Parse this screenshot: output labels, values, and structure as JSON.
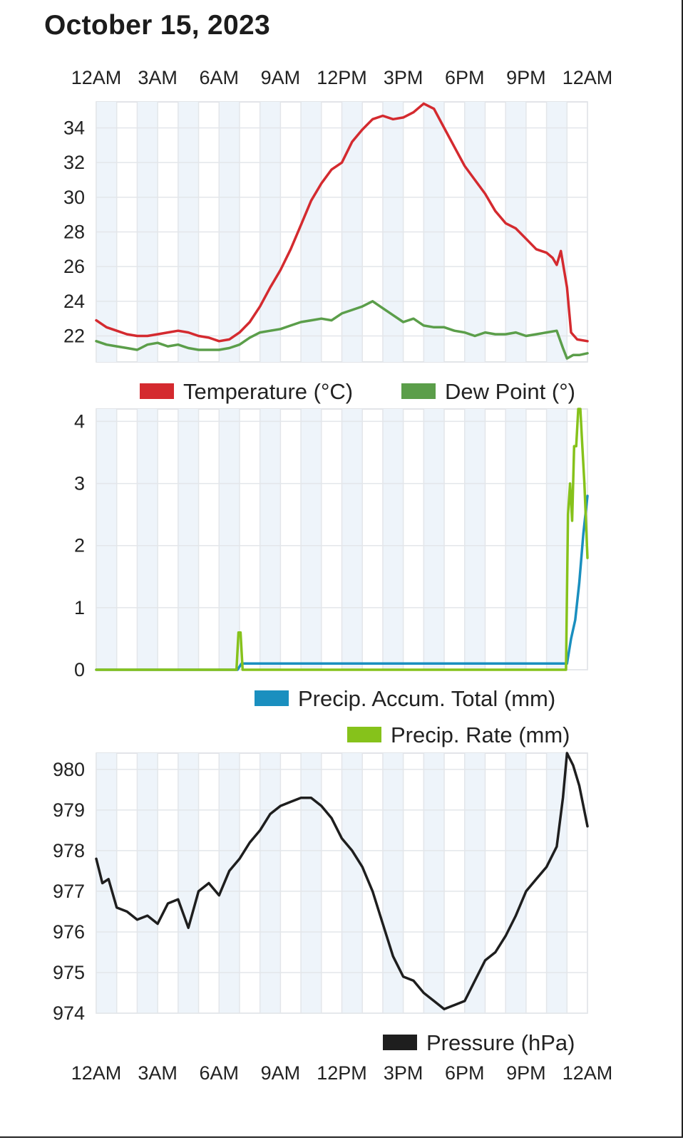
{
  "page": {
    "title": "October 15, 2023"
  },
  "chart_data": [
    {
      "type": "line",
      "id": "temperature-dewpoint",
      "title": "",
      "x_unit": "hours",
      "xlim": [
        0,
        24
      ],
      "ylim": [
        20.5,
        35.5
      ],
      "yticks": [
        22,
        24,
        26,
        28,
        30,
        32,
        34
      ],
      "xticks": [
        {
          "x": 0,
          "label": "12AM"
        },
        {
          "x": 3,
          "label": "3AM"
        },
        {
          "x": 6,
          "label": "6AM"
        },
        {
          "x": 9,
          "label": "9AM"
        },
        {
          "x": 12,
          "label": "12PM"
        },
        {
          "x": 15,
          "label": "3PM"
        },
        {
          "x": 18,
          "label": "6PM"
        },
        {
          "x": 21,
          "label": "9PM"
        },
        {
          "x": 24,
          "label": "12AM"
        }
      ],
      "grid": true,
      "legend": "bottom-right",
      "series": [
        {
          "name": "Temperature (°C)",
          "color": "#d42a2f",
          "x": [
            0,
            0.5,
            1,
            1.5,
            2,
            2.5,
            3,
            3.5,
            4,
            4.5,
            5,
            5.5,
            6,
            6.5,
            7,
            7.5,
            8,
            8.5,
            9,
            9.5,
            10,
            10.5,
            11,
            11.5,
            12,
            12.5,
            13,
            13.5,
            14,
            14.5,
            15,
            15.5,
            16,
            16.5,
            17,
            17.5,
            18,
            18.5,
            19,
            19.5,
            20,
            20.5,
            21,
            21.5,
            22,
            22.3,
            22.5,
            22.7,
            23,
            23.2,
            23.5,
            24
          ],
          "y": [
            22.9,
            22.5,
            22.3,
            22.1,
            22.0,
            22.0,
            22.1,
            22.2,
            22.3,
            22.2,
            22.0,
            21.9,
            21.7,
            21.8,
            22.2,
            22.8,
            23.7,
            24.8,
            25.8,
            27.0,
            28.4,
            29.8,
            30.8,
            31.6,
            32.0,
            33.2,
            33.9,
            34.5,
            34.7,
            34.5,
            34.6,
            34.9,
            35.4,
            35.1,
            34.0,
            32.9,
            31.8,
            31.0,
            30.2,
            29.2,
            28.5,
            28.2,
            27.6,
            27.0,
            26.8,
            26.5,
            26.1,
            26.9,
            24.8,
            22.2,
            21.8,
            21.7
          ]
        },
        {
          "name": "Dew Point (°)",
          "color": "#5b9e4a",
          "x": [
            0,
            0.5,
            1,
            1.5,
            2,
            2.5,
            3,
            3.5,
            4,
            4.5,
            5,
            5.5,
            6,
            6.5,
            7,
            7.5,
            8,
            8.5,
            9,
            9.5,
            10,
            10.5,
            11,
            11.5,
            12,
            12.5,
            13,
            13.5,
            14,
            14.5,
            15,
            15.5,
            16,
            16.5,
            17,
            17.5,
            18,
            18.5,
            19,
            19.5,
            20,
            20.5,
            21,
            21.5,
            22,
            22.5,
            22.8,
            23,
            23.3,
            23.6,
            24
          ],
          "y": [
            21.7,
            21.5,
            21.4,
            21.3,
            21.2,
            21.5,
            21.6,
            21.4,
            21.5,
            21.3,
            21.2,
            21.2,
            21.2,
            21.3,
            21.5,
            21.9,
            22.2,
            22.3,
            22.4,
            22.6,
            22.8,
            22.9,
            23.0,
            22.9,
            23.3,
            23.5,
            23.7,
            24.0,
            23.6,
            23.2,
            22.8,
            23.0,
            22.6,
            22.5,
            22.5,
            22.3,
            22.2,
            22.0,
            22.2,
            22.1,
            22.1,
            22.2,
            22.0,
            22.1,
            22.2,
            22.3,
            21.3,
            20.7,
            20.9,
            20.9,
            21.0
          ]
        }
      ]
    },
    {
      "type": "line",
      "id": "precipitation",
      "title": "",
      "x_unit": "hours",
      "xlim": [
        0,
        24
      ],
      "ylim": [
        0,
        4.2
      ],
      "yticks": [
        0,
        1,
        2,
        3,
        4
      ],
      "grid": true,
      "legend": "bottom-right",
      "series": [
        {
          "name": "Precip. Accum. Total (mm)",
          "color": "#1a8fbf",
          "x": [
            0,
            6.9,
            7.0,
            7.1,
            23.0,
            23.2,
            23.4,
            23.6,
            23.8,
            24
          ],
          "y": [
            0,
            0,
            0.05,
            0.1,
            0.1,
            0.5,
            0.8,
            1.4,
            2.2,
            2.8
          ]
        },
        {
          "name": "Precip. Rate (mm)",
          "color": "#86c21b",
          "x": [
            0,
            6.85,
            6.95,
            7.05,
            7.15,
            7.25,
            22.95,
            23.05,
            23.15,
            23.25,
            23.35,
            23.45,
            23.55,
            23.65,
            23.75,
            23.85,
            24
          ],
          "y": [
            0,
            0,
            0.6,
            0.6,
            0,
            0,
            0,
            2.5,
            3.0,
            2.4,
            3.6,
            3.6,
            4.2,
            4.2,
            3.6,
            3.0,
            1.8
          ]
        }
      ]
    },
    {
      "type": "line",
      "id": "pressure",
      "title": "",
      "x_unit": "hours",
      "xlim": [
        0,
        24
      ],
      "ylim": [
        974,
        980.4
      ],
      "yticks": [
        974,
        975,
        976,
        977,
        978,
        979,
        980
      ],
      "grid": true,
      "legend": "bottom-right",
      "series": [
        {
          "name": "Pressure (hPa)",
          "color": "#1e1e1e",
          "x": [
            0,
            0.3,
            0.6,
            1,
            1.5,
            2,
            2.5,
            3,
            3.5,
            4,
            4.5,
            5,
            5.5,
            6,
            6.5,
            7,
            7.5,
            8,
            8.5,
            9,
            9.5,
            10,
            10.5,
            11,
            11.5,
            12,
            12.5,
            13,
            13.5,
            14,
            14.5,
            15,
            15.5,
            16,
            16.5,
            17,
            17.5,
            18,
            18.5,
            19,
            19.5,
            20,
            20.5,
            21,
            21.5,
            22,
            22.5,
            22.8,
            23,
            23.3,
            23.6,
            24
          ],
          "y": [
            977.8,
            977.2,
            977.3,
            976.6,
            976.5,
            976.3,
            976.4,
            976.2,
            976.7,
            976.8,
            976.1,
            977.0,
            977.2,
            976.9,
            977.5,
            977.8,
            978.2,
            978.5,
            978.9,
            979.1,
            979.2,
            979.3,
            979.3,
            979.1,
            978.8,
            978.3,
            978.0,
            977.6,
            977.0,
            976.2,
            975.4,
            974.9,
            974.8,
            974.5,
            974.3,
            974.1,
            974.2,
            974.3,
            974.8,
            975.3,
            975.5,
            975.9,
            976.4,
            977.0,
            977.3,
            977.6,
            978.1,
            979.3,
            980.4,
            980.1,
            979.6,
            978.6
          ]
        }
      ]
    }
  ]
}
